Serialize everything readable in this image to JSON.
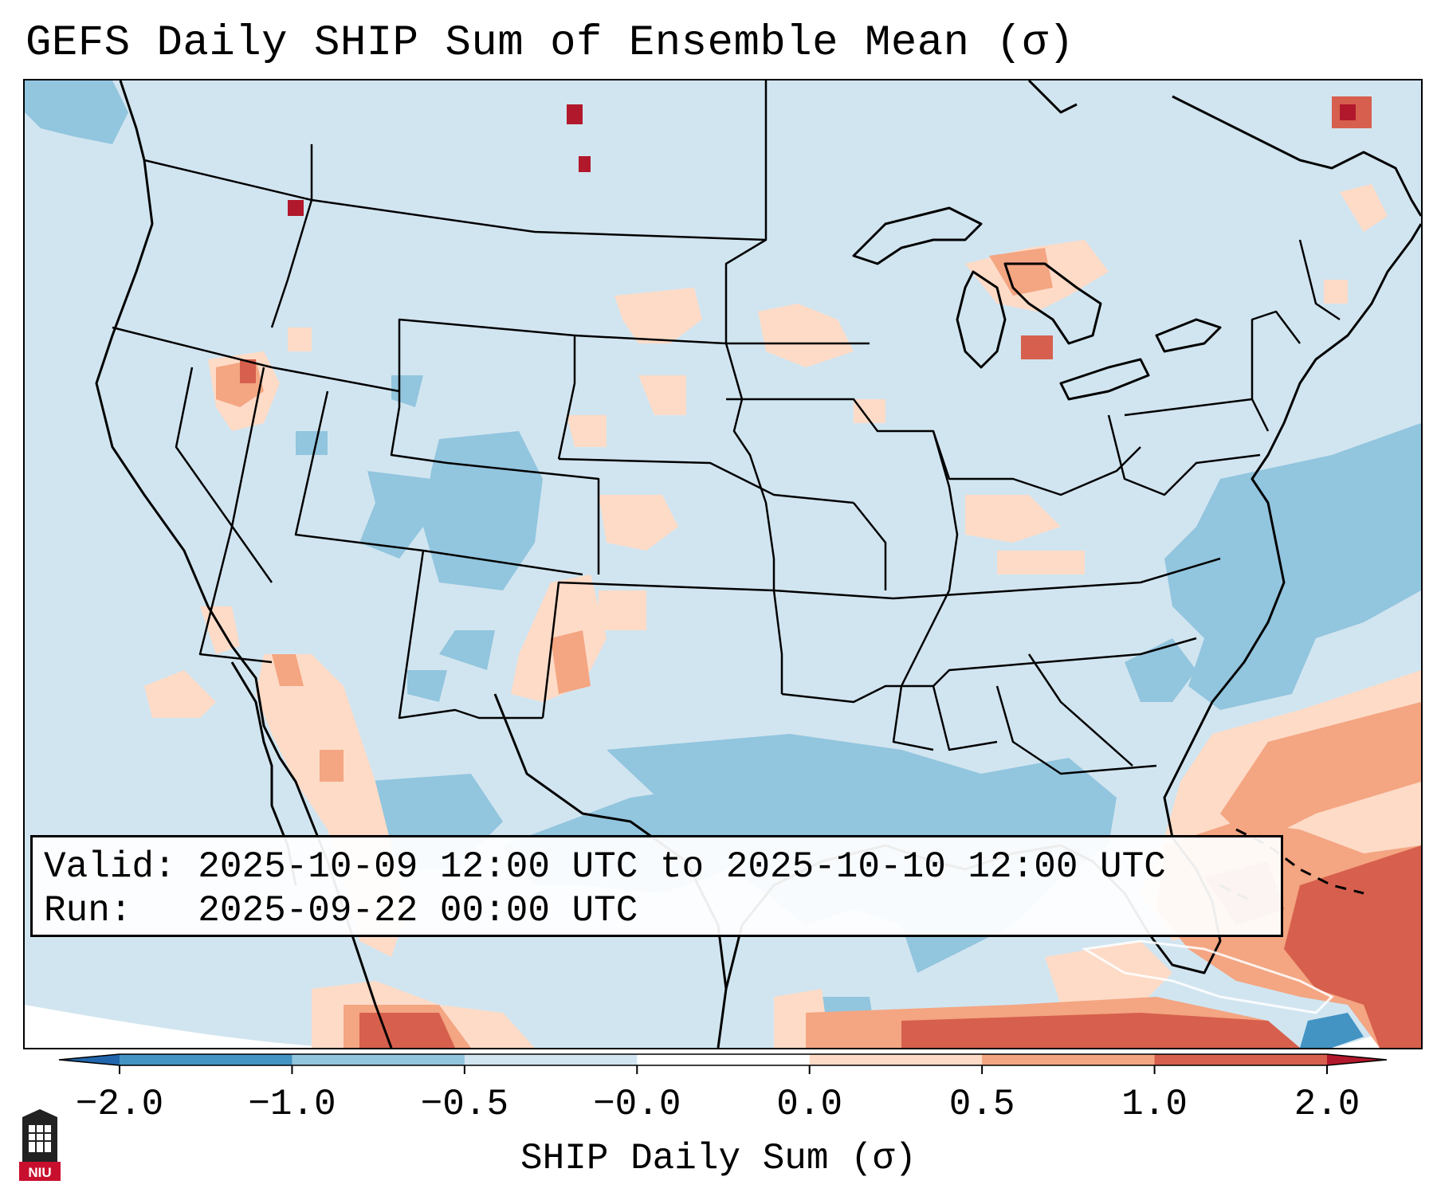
{
  "title": "GEFS Daily SHIP Sum of Ensemble Mean (σ)",
  "valid_label": "Valid:",
  "valid_value": "2025-10-09 12:00 UTC to 2025-10-10 12:00 UTC",
  "run_label": "Run:",
  "run_value": "2025-09-22 00:00 UTC",
  "colorbar": {
    "label": "SHIP Daily Sum (σ)",
    "tick_labels": [
      "−2.0",
      "−1.0",
      "−0.5",
      "−0.0",
      "0.0",
      "0.5",
      "1.0",
      "2.0"
    ],
    "colors": [
      "#4393c3",
      "#92c5de",
      "#d1e5f0",
      "#ffffff",
      "#fddbc7",
      "#f4a582",
      "#d6604d"
    ],
    "under_color": "#2166ac",
    "over_color": "#b2182b"
  },
  "logo": {
    "text": "NIU",
    "color": "#c8102e"
  }
}
